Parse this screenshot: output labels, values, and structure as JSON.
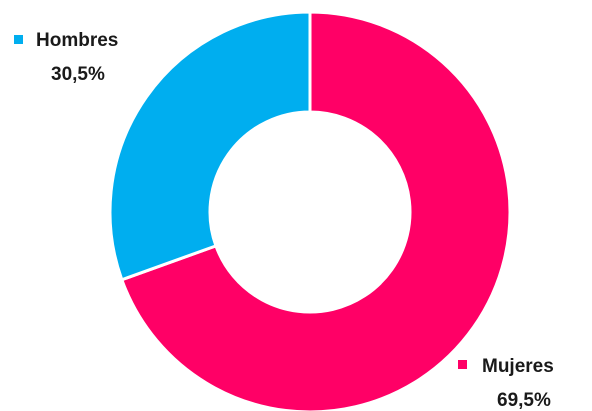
{
  "chart_data": {
    "type": "pie",
    "variant": "donut",
    "categories": [
      "Hombres",
      "Mujeres"
    ],
    "values": [
      30.5,
      69.5
    ],
    "labels": [
      "30,5%",
      "69,5%"
    ],
    "colors": [
      "#00AEEF",
      "#FF0066"
    ],
    "title": "",
    "legend": "inline-labels"
  }
}
